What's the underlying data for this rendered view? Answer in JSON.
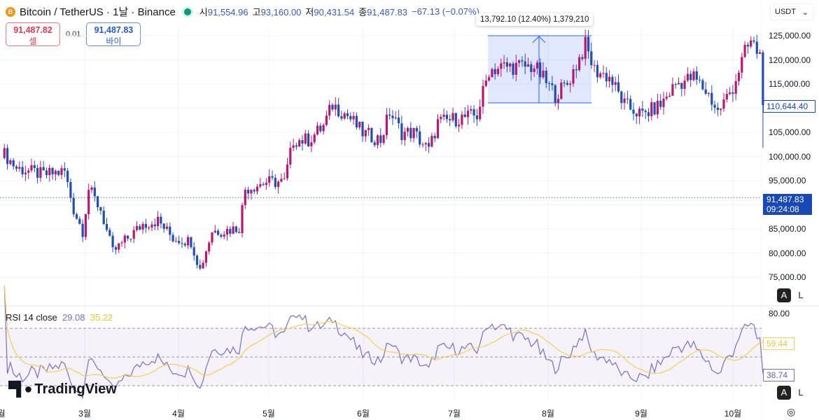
{
  "header": {
    "symbol": "Bitcoin / TetherUS · 1날 · Binance",
    "coin_icon": "B",
    "open_label": "시",
    "open": "91,554.96",
    "high_label": "고",
    "high": "93,160.00",
    "low_label": "저",
    "low": "90,431.54",
    "close_label": "종",
    "close": "91,487.83",
    "change": "−67.13 (−0.07%)"
  },
  "trade": {
    "sell_price": "91,487.82",
    "sell_label": "셀",
    "spread": "0.01",
    "buy_price": "91,487.83",
    "buy_label": "바이"
  },
  "currency": "USDT",
  "price_axis": [
    "125,000.00",
    "120,000.00",
    "115,000.00",
    "105,000.00",
    "100,000.00",
    "95,000.00",
    "85,000.00",
    "80,000.00",
    "75,000.00"
  ],
  "price_tag": "110,644.40",
  "current_price": "91,487.83",
  "countdown": "09:24:08",
  "measure_label": "13,792.10 (12.40%) 1,379,210",
  "auto_label": "A",
  "log_label": "L",
  "rsi": {
    "label": "RSI 14 close",
    "value": "29.08",
    "ma_value": "35.22",
    "axis_top": "80.00",
    "tag_ma": "59.44",
    "tag_rsi": "38.74"
  },
  "months": [
    "월",
    "3월",
    "4월",
    "5월",
    "6월",
    "7월",
    "8월",
    "9월",
    "10월"
  ],
  "brand": "TradingView",
  "colors": {
    "up": "#b8186f",
    "down": "#1f4fb4",
    "rsi": "#7e6cc4",
    "rsi_ma": "#f2cf5b",
    "accent": "#1848b5"
  },
  "chart_data": {
    "type": "candlestick",
    "ylim": [
      70000,
      127000
    ],
    "price_path": [
      [
        0,
        101200
      ],
      [
        5,
        97600
      ],
      [
        14,
        96200
      ],
      [
        21,
        96900
      ],
      [
        24,
        89000
      ],
      [
        27,
        84600
      ],
      [
        29,
        93300
      ],
      [
        33,
        89000
      ],
      [
        37,
        80200
      ],
      [
        42,
        83100
      ],
      [
        47,
        86000
      ],
      [
        52,
        86700
      ],
      [
        57,
        83100
      ],
      [
        63,
        82400
      ],
      [
        66,
        76600
      ],
      [
        70,
        84600
      ],
      [
        74,
        84600
      ],
      [
        79,
        85300
      ],
      [
        81,
        93300
      ],
      [
        88,
        94700
      ],
      [
        94,
        94700
      ],
      [
        97,
        103400
      ],
      [
        102,
        103400
      ],
      [
        107,
        106300
      ],
      [
        110,
        110700
      ],
      [
        115,
        108500
      ],
      [
        120,
        104900
      ],
      [
        126,
        103400
      ],
      [
        129,
        109200
      ],
      [
        133,
        104900
      ],
      [
        137,
        104900
      ],
      [
        142,
        101200
      ],
      [
        145,
        107000
      ],
      [
        151,
        107800
      ],
      [
        158,
        108500
      ],
      [
        162,
        117900
      ],
      [
        167,
        118600
      ],
      [
        177,
        118600
      ],
      [
        184,
        112800
      ],
      [
        188,
        115000
      ],
      [
        194,
        123000
      ],
      [
        197,
        117900
      ],
      [
        202,
        116400
      ],
      [
        207,
        110700
      ],
      [
        213,
        108500
      ],
      [
        219,
        110700
      ],
      [
        224,
        115000
      ],
      [
        230,
        116400
      ],
      [
        235,
        112800
      ],
      [
        238,
        109200
      ],
      [
        243,
        114300
      ],
      [
        247,
        121500
      ],
      [
        249,
        123700
      ],
      [
        252,
        121000
      ],
      [
        253,
        110644
      ]
    ]
  }
}
